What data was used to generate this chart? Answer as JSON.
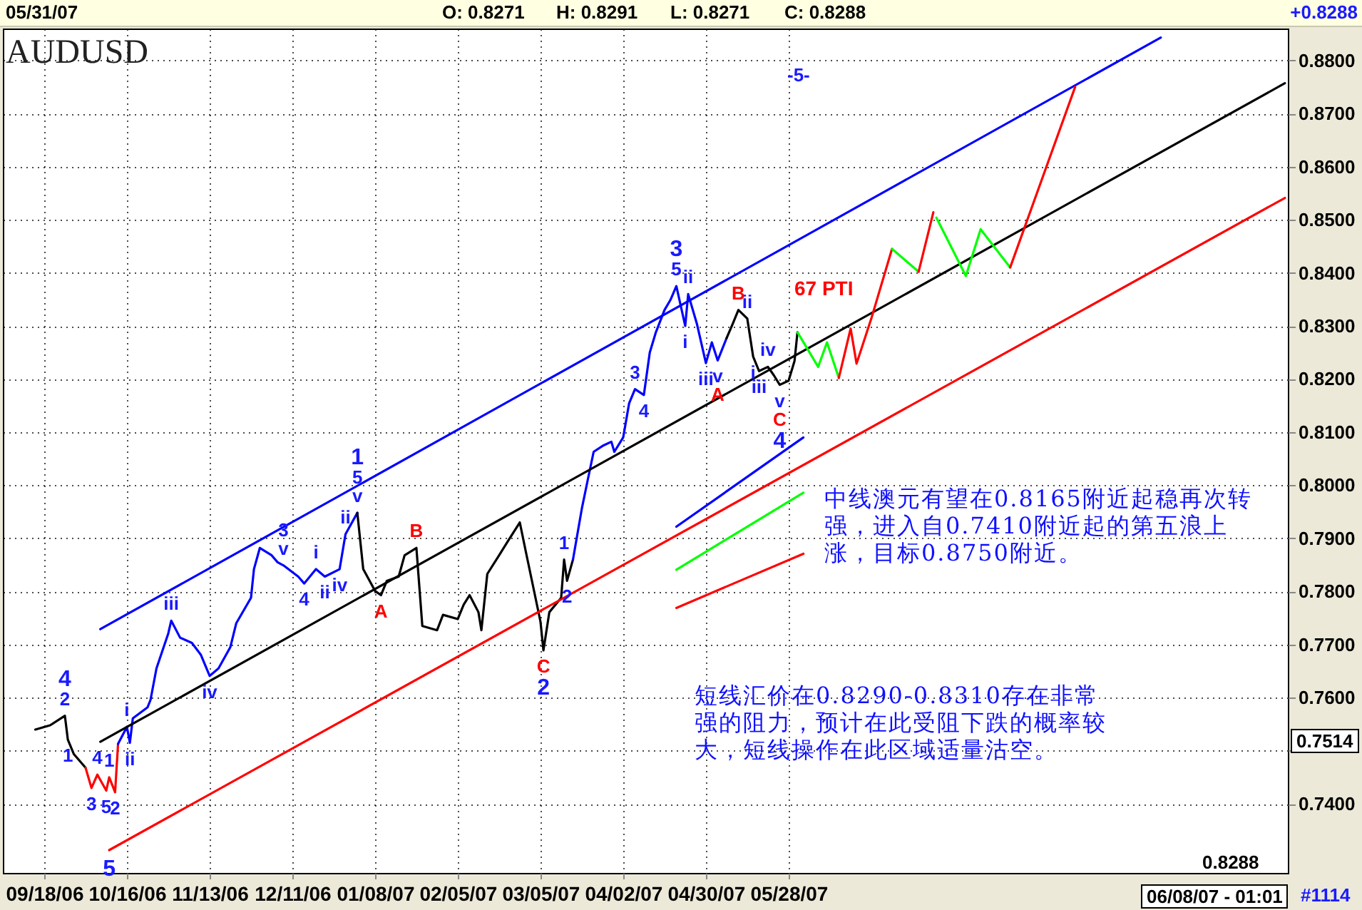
{
  "chart_data": {
    "type": "line",
    "title": "AUDUSD",
    "xlim": [
      "2006-09-04",
      "2007-11-13"
    ],
    "ylim": [
      0.727,
      0.886
    ],
    "xticks": [
      {
        "value": "2006-09-18",
        "label": "09/18/06"
      },
      {
        "value": "2006-10-16",
        "label": "10/16/06"
      },
      {
        "value": "2006-11-13",
        "label": "11/13/06"
      },
      {
        "value": "2006-12-11",
        "label": "12/11/06"
      },
      {
        "value": "2007-01-08",
        "label": "01/08/07"
      },
      {
        "value": "2007-02-05",
        "label": "02/05/07"
      },
      {
        "value": "2007-03-05",
        "label": "03/05/07"
      },
      {
        "value": "2007-04-02",
        "label": "04/02/07"
      },
      {
        "value": "2007-04-30",
        "label": "04/30/07"
      },
      {
        "value": "2007-05-28",
        "label": "05/28/07"
      }
    ],
    "yticks": [
      {
        "value": 0.74,
        "label": "0.7400"
      },
      {
        "value": 0.75,
        "label": null
      },
      {
        "value": 0.76,
        "label": "0.7600"
      },
      {
        "value": 0.77,
        "label": "0.7700"
      },
      {
        "value": 0.78,
        "label": "0.7800"
      },
      {
        "value": 0.79,
        "label": "0.7900"
      },
      {
        "value": 0.8,
        "label": "0.8000"
      },
      {
        "value": 0.81,
        "label": "0.8100"
      },
      {
        "value": 0.82,
        "label": "0.8200"
      },
      {
        "value": 0.83,
        "label": "0.8300"
      },
      {
        "value": 0.84,
        "label": "0.8400"
      },
      {
        "value": 0.85,
        "label": "0.8500"
      },
      {
        "value": 0.86,
        "label": "0.8600"
      },
      {
        "value": 0.87,
        "label": "0.8700"
      },
      {
        "value": 0.88,
        "label": "0.8800"
      }
    ],
    "grid": true,
    "series": [
      {
        "color": "#000000",
        "x": [
          "2006-09-15",
          "2006-09-20",
          "2006-09-25",
          "2006-09-26",
          "2006-09-28",
          "2006-10-02"
        ],
        "values": [
          0.754,
          0.7548,
          0.7566,
          0.7521,
          0.7494,
          0.7468
        ]
      },
      {
        "color": "#ff0000",
        "x": [
          "2006-10-02",
          "2006-10-04",
          "2006-10-06",
          "2006-10-09",
          "2006-10-10",
          "2006-10-12",
          "2006-10-13"
        ],
        "values": [
          0.7468,
          0.743,
          0.7455,
          0.7425,
          0.745,
          0.7422,
          0.7513
        ]
      },
      {
        "color": "#0000ff",
        "x": [
          "2006-10-13",
          "2006-10-16",
          "2006-10-17",
          "2006-10-18",
          "2006-10-23",
          "2006-10-24",
          "2006-10-26",
          "2006-10-30",
          "2006-10-31",
          "2006-11-03",
          "2006-11-07",
          "2006-11-10",
          "2006-11-13",
          "2006-11-16",
          "2006-11-20",
          "2006-11-22",
          "2006-11-27",
          "2006-11-28",
          "2006-11-30",
          "2006-12-04",
          "2006-12-06",
          "2006-12-08",
          "2006-12-13",
          "2006-12-15",
          "2006-12-19",
          "2006-12-22",
          "2006-12-27",
          "2006-12-29",
          "2007-01-02"
        ],
        "values": [
          0.7513,
          0.7545,
          0.7515,
          0.7561,
          0.7582,
          0.7596,
          0.7655,
          0.7721,
          0.7745,
          0.7713,
          0.7703,
          0.7681,
          0.7641,
          0.7655,
          0.7695,
          0.774,
          0.7788,
          0.7842,
          0.7882,
          0.7868,
          0.7855,
          0.7849,
          0.7828,
          0.7815,
          0.7842,
          0.7828,
          0.7842,
          0.7908,
          0.7948
        ]
      },
      {
        "color": "#000000",
        "x": [
          "2007-01-02",
          "2007-01-04",
          "2007-01-08",
          "2007-01-10",
          "2007-01-12",
          "2007-01-16",
          "2007-01-18",
          "2007-01-22",
          "2007-01-24",
          "2007-01-29",
          "2007-01-31",
          "2007-02-05",
          "2007-02-07",
          "2007-02-09",
          "2007-02-12",
          "2007-02-13",
          "2007-02-15",
          "2007-02-19",
          "2007-02-22",
          "2007-02-26",
          "2007-02-28",
          "2007-03-02",
          "2007-03-05",
          "2007-03-06",
          "2007-03-08",
          "2007-03-12",
          "2007-03-13",
          "2007-03-14",
          "2007-03-16"
        ],
        "values": [
          0.7948,
          0.7842,
          0.7801,
          0.7793,
          0.782,
          0.7828,
          0.7868,
          0.7882,
          0.7735,
          0.7727,
          0.7756,
          0.7748,
          0.7775,
          0.7793,
          0.7761,
          0.7727,
          0.7833,
          0.7868,
          0.7895,
          0.793,
          0.7876,
          0.7823,
          0.7743,
          0.7689,
          0.7761,
          0.7788,
          0.786,
          0.782,
          0.786
        ]
      },
      {
        "color": "#0000ff",
        "x": [
          "2007-03-16",
          "2007-03-19",
          "2007-03-21",
          "2007-03-23",
          "2007-03-26",
          "2007-03-29",
          "2007-03-30",
          "2007-04-02",
          "2007-04-04",
          "2007-04-06",
          "2007-04-09",
          "2007-04-11",
          "2007-04-13",
          "2007-04-16",
          "2007-04-18",
          "2007-04-20",
          "2007-04-23",
          "2007-04-24",
          "2007-04-27",
          "2007-04-30",
          "2007-05-02",
          "2007-05-04",
          "2007-05-07"
        ],
        "values": [
          0.786,
          0.7956,
          0.801,
          0.8063,
          0.8074,
          0.8082,
          0.8063,
          0.809,
          0.8154,
          0.8181,
          0.817,
          0.825,
          0.8287,
          0.833,
          0.8349,
          0.8375,
          0.83,
          0.836,
          0.8303,
          0.823,
          0.8269,
          0.8235,
          0.8277
        ]
      },
      {
        "color": "#000000",
        "x": [
          "2007-05-07",
          "2007-05-09",
          "2007-05-11",
          "2007-05-14",
          "2007-05-16",
          "2007-05-18",
          "2007-05-21",
          "2007-05-23",
          "2007-05-25",
          "2007-05-28",
          "2007-05-30",
          "2007-05-31"
        ],
        "values": [
          0.8277,
          0.8303,
          0.833,
          0.8314,
          0.8242,
          0.8215,
          0.8223,
          0.8207,
          0.8189,
          0.8197,
          0.8234,
          0.8288
        ]
      },
      {
        "color": "#0000ff",
        "x": [
          "2006-10-07",
          "2007-10-01"
        ],
        "values": [
          0.7729,
          0.8843
        ]
      },
      {
        "color": "#000000",
        "x": [
          "2006-10-07",
          "2007-11-12"
        ],
        "values": [
          0.7517,
          0.8757
        ]
      },
      {
        "color": "#ff0000",
        "x": [
          "2006-10-10",
          "2007-11-12"
        ],
        "values": [
          0.7313,
          0.8541
        ]
      },
      {
        "color": "#00ff00",
        "x": [
          "2007-05-31",
          "2007-06-07",
          "2007-06-10",
          "2007-06-14"
        ],
        "values": [
          0.8288,
          0.8223,
          0.8269,
          0.8202
        ]
      },
      {
        "color": "#ff0000",
        "x": [
          "2007-06-14",
          "2007-06-18",
          "2007-06-20",
          "2007-06-25",
          "2007-07-02"
        ],
        "values": [
          0.8202,
          0.8295,
          0.8229,
          0.8314,
          0.8445
        ]
      },
      {
        "color": "#00ff00",
        "x": [
          "2007-07-02",
          "2007-07-11"
        ],
        "values": [
          0.8445,
          0.8402
        ]
      },
      {
        "color": "#ff0000",
        "x": [
          "2007-07-11",
          "2007-07-16"
        ],
        "values": [
          0.8402,
          0.8514
        ]
      },
      {
        "color": "#00ff00",
        "x": [
          "2007-07-17",
          "2007-07-27",
          "2007-08-01",
          "2007-08-11"
        ],
        "values": [
          0.8504,
          0.8394,
          0.8482,
          0.841
        ]
      },
      {
        "color": "#ff0000",
        "x": [
          "2007-08-11",
          "2007-09-02"
        ],
        "values": [
          0.841,
          0.875
        ]
      },
      {
        "color": "#0000ff",
        "x": [
          "2007-04-20",
          "2007-06-02"
        ],
        "values": [
          0.7922,
          0.809
        ]
      },
      {
        "color": "#00ff00",
        "x": [
          "2007-04-20",
          "2007-06-02"
        ],
        "values": [
          0.7841,
          0.7986
        ]
      },
      {
        "color": "#ff0000",
        "x": [
          "2007-04-20",
          "2007-06-02"
        ],
        "values": [
          0.7769,
          0.7871
        ]
      }
    ],
    "annotations": [
      "05/31/07",
      "O: 0.8271",
      "H: 0.8291",
      "L: 0.8271",
      "C: 0.8288",
      "+0.8288",
      "0.7514",
      "0.8288",
      "06/08/07 - 01:01",
      "#1114",
      "中线澳元有望在0.8165附近起稳再次转强，进入自0.7410附近起的第五浪上涨，目标0.8750附近。",
      "短线汇价在0.8290-0.8310存在非常强的阻力，预计在此受阻下跌的概率较大，短线操作在此区域适量沽空。",
      "-5-",
      "67 PTI",
      {
        "text": "4",
        "x": "2006-09-25",
        "y": 0.7566
      },
      {
        "text": "5",
        "x": "2006-10-10",
        "y": 0.7313
      },
      {
        "text": "1",
        "x": "2007-01-02",
        "y": 0.7948
      },
      {
        "text": "2",
        "x": "2007-03-06",
        "y": 0.7689
      },
      {
        "text": "3",
        "x": "2007-04-20",
        "y": 0.8375
      },
      {
        "text": "4",
        "x": "2007-05-25",
        "y": 0.8189
      },
      {
        "text": "2",
        "x": "2006-09-25",
        "y": 0.7566
      },
      {
        "text": "1",
        "x": "2006-09-26",
        "y": 0.7521
      },
      {
        "text": "3",
        "x": "2006-10-04",
        "y": 0.743
      },
      {
        "text": "4",
        "x": "2006-10-06",
        "y": 0.7455
      },
      {
        "text": "5",
        "x": "2006-10-09",
        "y": 0.7425
      },
      {
        "text": "1",
        "x": "2006-10-10",
        "y": 0.745
      },
      {
        "text": "2",
        "x": "2006-10-12",
        "y": 0.7422
      },
      {
        "text": "i",
        "x": "2006-10-16",
        "y": 0.7545
      },
      {
        "text": "ii",
        "x": "2006-10-17",
        "y": 0.7515
      },
      {
        "text": "iii",
        "x": "2006-10-31",
        "y": 0.7745
      },
      {
        "text": "iv",
        "x": "2006-11-13",
        "y": 0.7641
      },
      {
        "text": "v",
        "x": "2006-12-08",
        "y": 0.7849
      },
      {
        "text": "3",
        "x": "2006-12-08",
        "y": 0.7849
      },
      {
        "text": "4",
        "x": "2006-12-15",
        "y": 0.7815
      },
      {
        "text": "i",
        "x": "2006-12-19",
        "y": 0.7842
      },
      {
        "text": "ii",
        "x": "2006-12-22",
        "y": 0.7828
      },
      {
        "text": "iv",
        "x": "2006-12-27",
        "y": 0.7842
      },
      {
        "text": "ii",
        "x": "2006-12-29",
        "y": 0.7908
      },
      {
        "text": "v",
        "x": "2007-01-02",
        "y": 0.7948
      },
      {
        "text": "5",
        "x": "2007-01-02",
        "y": 0.7948
      },
      {
        "text": "1",
        "x": "2007-03-13",
        "y": 0.786
      },
      {
        "text": "2",
        "x": "2007-03-14",
        "y": 0.782
      },
      {
        "text": "3",
        "x": "2007-04-06",
        "y": 0.8181
      },
      {
        "text": "4",
        "x": "2007-04-09",
        "y": 0.817
      },
      {
        "text": "5",
        "x": "2007-04-20",
        "y": 0.8375
      },
      {
        "text": "i",
        "x": "2007-04-23",
        "y": 0.83
      },
      {
        "text": "ii",
        "x": "2007-04-24",
        "y": 0.836
      },
      {
        "text": "iii",
        "x": "2007-04-30",
        "y": 0.823
      },
      {
        "text": "v",
        "x": "2007-05-04",
        "y": 0.8235
      },
      {
        "text": "ii",
        "x": "2007-05-14",
        "y": 0.8314
      },
      {
        "text": "i",
        "x": "2007-05-16",
        "y": 0.8242
      },
      {
        "text": "iii",
        "x": "2007-05-18",
        "y": 0.8215
      },
      {
        "text": "iv",
        "x": "2007-05-21",
        "y": 0.8223
      },
      {
        "text": "v",
        "x": "2007-05-25",
        "y": 0.8189
      },
      {
        "text": "A",
        "x": "2007-01-10",
        "y": 0.7793
      },
      {
        "text": "B",
        "x": "2007-01-22",
        "y": 0.7882
      },
      {
        "text": "C",
        "x": "2007-03-06",
        "y": 0.7689
      },
      {
        "text": "A",
        "x": "2007-05-04",
        "y": 0.8235
      },
      {
        "text": "B",
        "x": "2007-05-11",
        "y": 0.833
      },
      {
        "text": "C",
        "x": "2007-05-25",
        "y": 0.8189
      }
    ]
  }
}
